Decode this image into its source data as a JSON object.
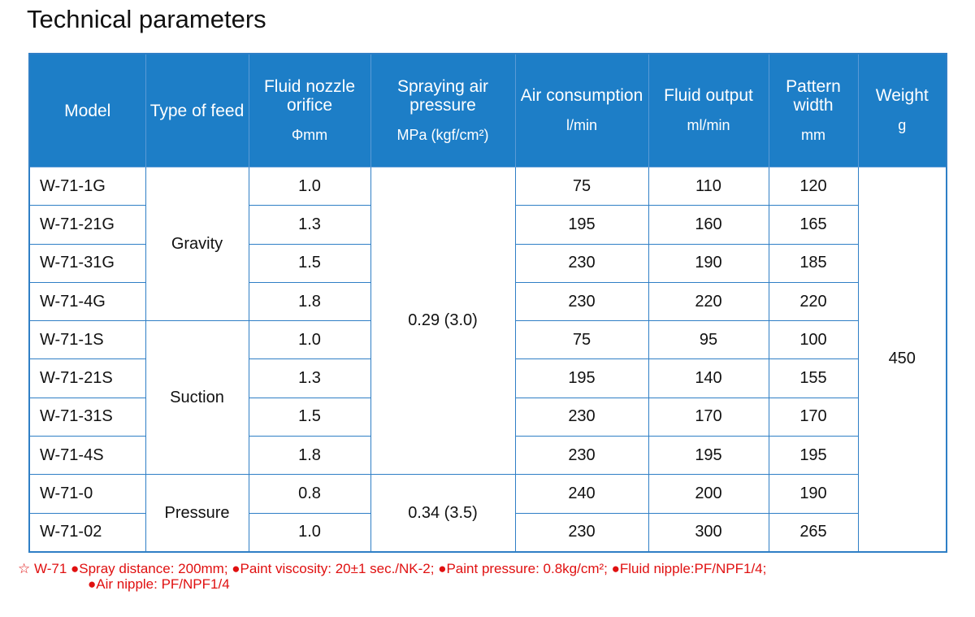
{
  "header": {
    "title": "Technical parameters"
  },
  "table": {
    "columns": [
      {
        "name": "Model"
      },
      {
        "name": "Type of feed"
      },
      {
        "name": "Fluid nozzle orifice",
        "unit": "Φmm"
      },
      {
        "name": "Spraying air pressure",
        "unit": "MPa (kgf/cm²)"
      },
      {
        "name": "Air consumption",
        "unit": "l/min"
      },
      {
        "name": "Fluid output",
        "unit": "ml/min"
      },
      {
        "name": "Pattern width",
        "unit": "mm"
      },
      {
        "name": "Weight",
        "unit": "g"
      }
    ],
    "weight": "450",
    "pressure_groups": [
      {
        "pressure": "0.29 (3.0)",
        "feed_groups": [
          {
            "feed": "Gravity",
            "rows": [
              {
                "model": "W-71-1G",
                "orifice": "1.0",
                "air": "75",
                "fluid": "110",
                "pattern": "120"
              },
              {
                "model": "W-71-21G",
                "orifice": "1.3",
                "air": "195",
                "fluid": "160",
                "pattern": "165"
              },
              {
                "model": "W-71-31G",
                "orifice": "1.5",
                "air": "230",
                "fluid": "190",
                "pattern": "185"
              },
              {
                "model": "W-71-4G",
                "orifice": "1.8",
                "air": "230",
                "fluid": "220",
                "pattern": "220"
              }
            ]
          },
          {
            "feed": "Suction",
            "rows": [
              {
                "model": "W-71-1S",
                "orifice": "1.0",
                "air": "75",
                "fluid": "95",
                "pattern": "100"
              },
              {
                "model": "W-71-21S",
                "orifice": "1.3",
                "air": "195",
                "fluid": "140",
                "pattern": "155"
              },
              {
                "model": "W-71-31S",
                "orifice": "1.5",
                "air": "230",
                "fluid": "170",
                "pattern": "170"
              },
              {
                "model": "W-71-4S",
                "orifice": "1.8",
                "air": "230",
                "fluid": "195",
                "pattern": "195"
              }
            ]
          }
        ]
      },
      {
        "pressure": "0.34 (3.5)",
        "feed_groups": [
          {
            "feed": "Pressure",
            "rows": [
              {
                "model": "W-71-0",
                "orifice": "0.8",
                "air": "240",
                "fluid": "200",
                "pattern": "190"
              },
              {
                "model": "W-71-02",
                "orifice": "1.0",
                "air": "230",
                "fluid": "300",
                "pattern": "265"
              }
            ]
          }
        ]
      }
    ]
  },
  "footnote": {
    "lines": [
      "☆ W-71 ●Spray distance: 200mm; ●Paint viscosity: 20±1 sec./NK-2; ●Paint pressure: 0.8kg/cm²; ●Fluid nipple:PF/NPF1/4;",
      "●Air nipple: PF/NPF1/4"
    ]
  }
}
